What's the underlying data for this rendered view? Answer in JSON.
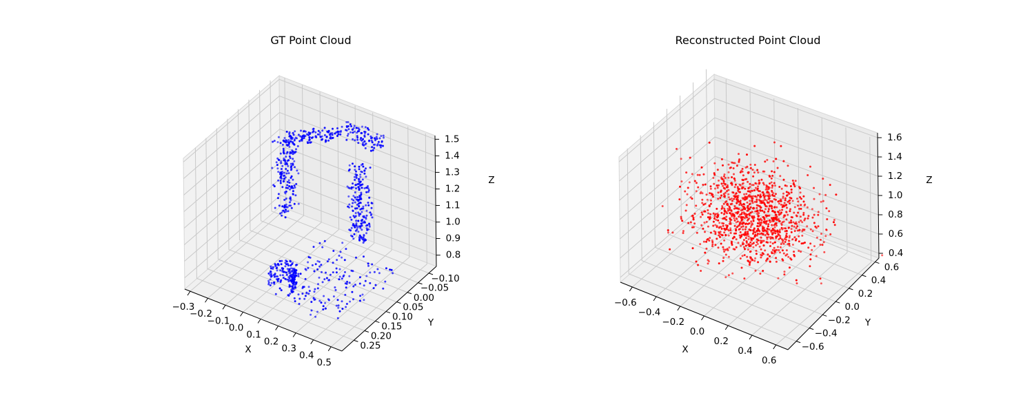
{
  "chart_data": [
    {
      "type": "scatter",
      "title": "GT Point Cloud",
      "xlabel": "X",
      "ylabel": "Y",
      "zlabel": "Z",
      "xlim": [
        -0.36,
        0.52
      ],
      "ylim": [
        -0.13,
        0.28
      ],
      "zlim": [
        0.73,
        1.52
      ],
      "xticks": [
        "−0.3",
        "−0.2",
        "−0.1",
        "0.0",
        "0.1",
        "0.2",
        "0.3",
        "0.4",
        "0.5"
      ],
      "yticks": [
        "−0.10",
        "−0.05",
        "0.00",
        "0.05",
        "0.10",
        "0.15",
        "0.20",
        "0.25"
      ],
      "zticks": [
        "0.8",
        "0.9",
        "1.0",
        "1.1",
        "1.2",
        "1.3",
        "1.4",
        "1.5"
      ],
      "grid": true,
      "series": [
        {
          "color": "#0000ff",
          "n_points": 900,
          "structure": "chair: two armrest columns, top back rail, curved seat front"
        }
      ]
    },
    {
      "type": "scatter",
      "title": "Reconstructed Point Cloud",
      "xlabel": "X",
      "ylabel": "Y",
      "zlabel": "Z",
      "xlim": [
        -0.7,
        0.7
      ],
      "ylim": [
        -0.72,
        0.66
      ],
      "zlim": [
        0.35,
        1.65
      ],
      "xticks": [
        "−0.6",
        "−0.4",
        "−0.2",
        "0.0",
        "0.2",
        "0.4",
        "0.6"
      ],
      "yticks": [
        "−0.6",
        "−0.4",
        "−0.2",
        "0.0",
        "0.2",
        "0.4",
        "0.6"
      ],
      "zticks": [
        "0.4",
        "0.6",
        "0.8",
        "1.0",
        "1.2",
        "1.4",
        "1.6"
      ],
      "grid": true,
      "series": [
        {
          "color": "#ff0000",
          "n_points": 1200,
          "structure": "isotropic gaussian blob centered near (0, 0, 0.95)"
        }
      ]
    }
  ]
}
